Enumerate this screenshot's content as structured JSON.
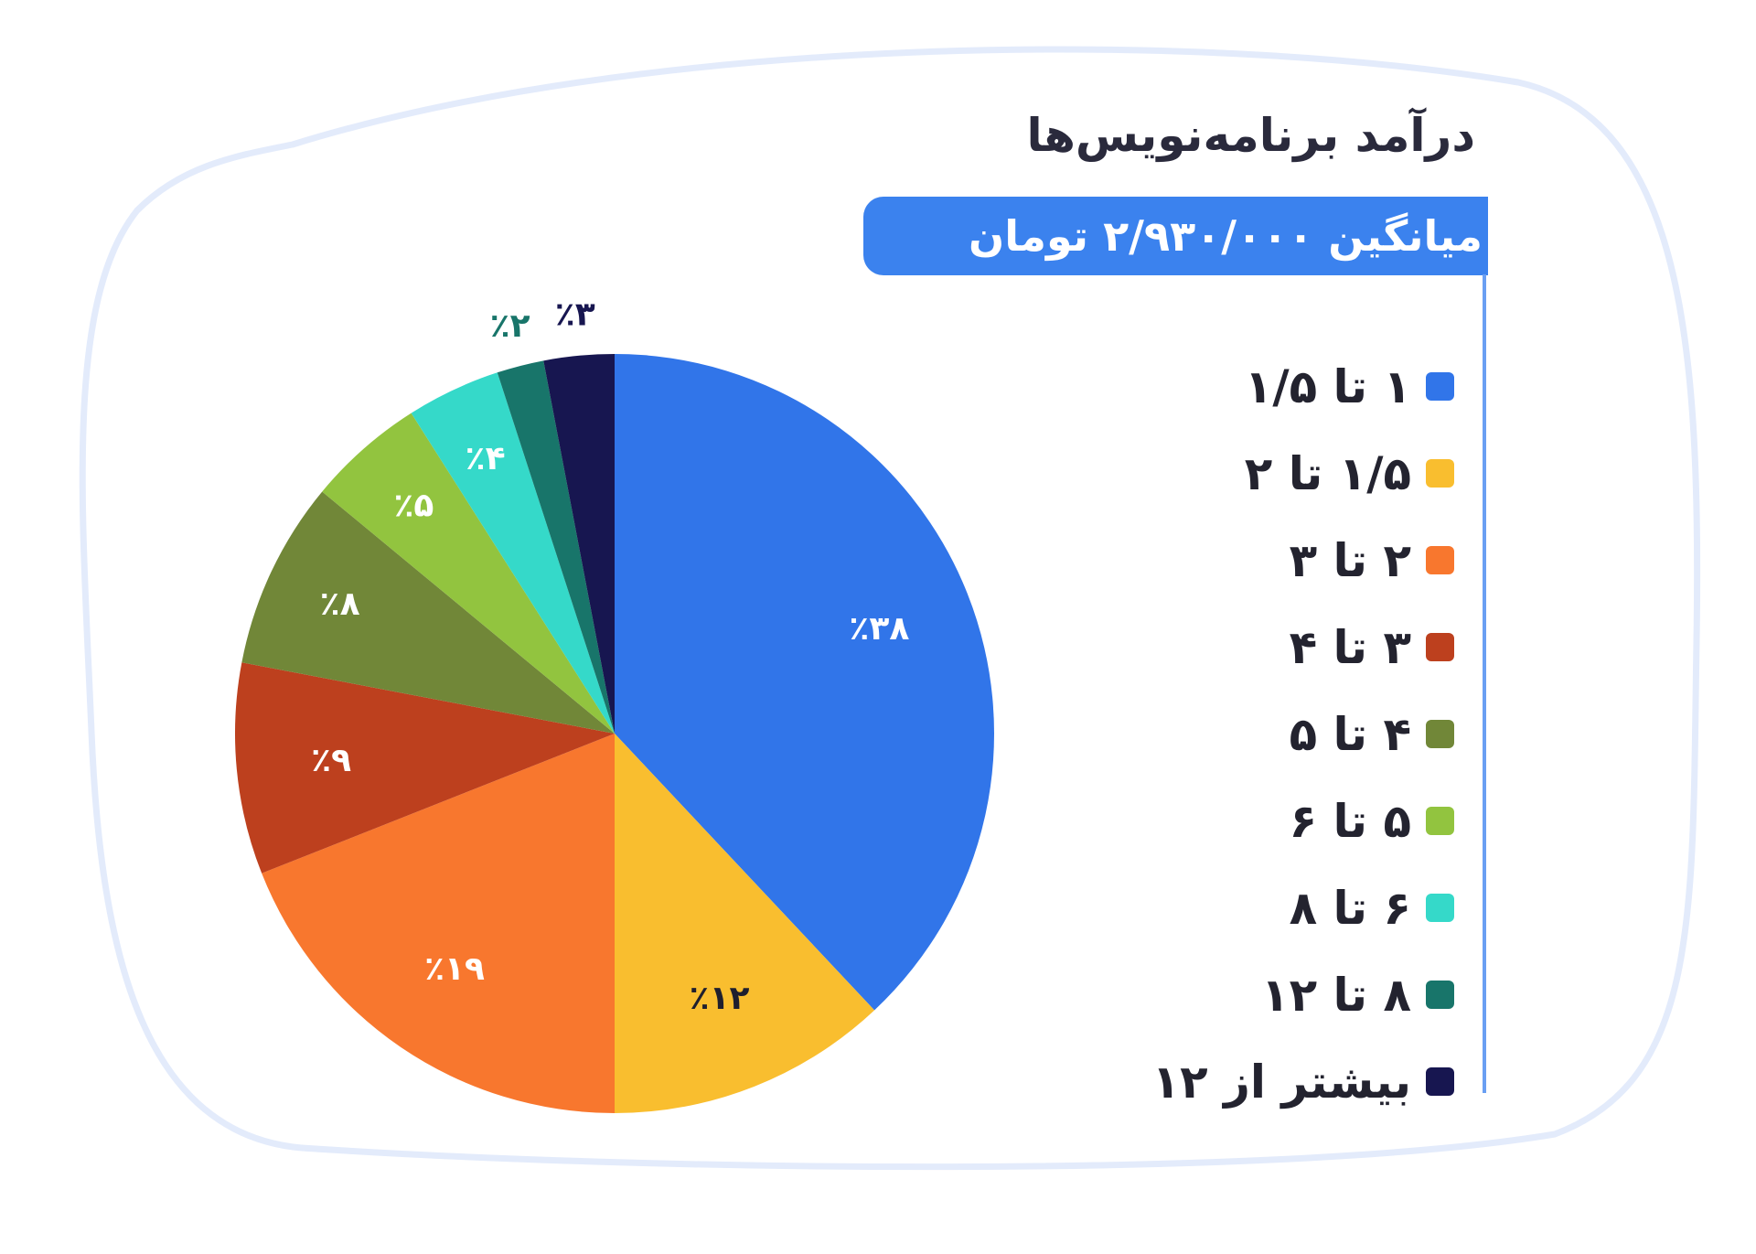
{
  "chart_data": {
    "type": "pie",
    "title": "درآمد برنامه‌نویس‌ها",
    "subtitle": "میانگین ۲/۹۳۰/۰۰۰ تومان",
    "legend_position": "right",
    "categories": [
      "۱ تا ۱/۵",
      "۱/۵ تا ۲",
      "۲ تا ۳",
      "۳ تا ۴",
      "۴ تا ۵",
      "۵ تا ۶",
      "۶ تا ۸",
      "۸ تا ۱۲",
      "بیشتر از ۱۲"
    ],
    "values": [
      38,
      12,
      19,
      9,
      8,
      5,
      4,
      2,
      3
    ],
    "data_labels": [
      "٪۳۸",
      "٪۱۲",
      "٪۱۹",
      "٪۹",
      "٪۸",
      "٪۵",
      "٪۴",
      "٪۲",
      "٪۳"
    ],
    "colors": [
      "#3175e9",
      "#f9be2f",
      "#f8772e",
      "#bd401e",
      "#718738",
      "#92c43f",
      "#35d9c9",
      "#18756a",
      "#171650"
    ],
    "label_colors": [
      "#ffffff",
      "#1f1f2e",
      "#ffffff",
      "#ffffff",
      "#ffffff",
      "#ffffff",
      "#ffffff",
      "#18756a",
      "#171650"
    ]
  }
}
